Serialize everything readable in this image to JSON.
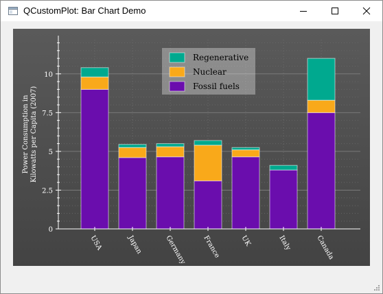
{
  "window": {
    "title": "QCustomPlot: Bar Chart Demo",
    "icons": {
      "app": "app-window-icon",
      "minimize": "minimize-icon",
      "maximize": "maximize-icon",
      "close": "close-icon",
      "grip": "resize-grip-icon"
    }
  },
  "chart_data": {
    "type": "bar",
    "stacked": true,
    "categories": [
      "USA",
      "Japan",
      "Germany",
      "France",
      "UK",
      "Italy",
      "Canada"
    ],
    "series": [
      {
        "name": "Fossil fuels",
        "color": "#6a0dad",
        "values": [
          9.0,
          4.6,
          4.65,
          3.1,
          4.65,
          3.8,
          7.5
        ]
      },
      {
        "name": "Nuclear",
        "color": "#f9a91a",
        "values": [
          0.8,
          0.65,
          0.65,
          2.3,
          0.45,
          0.0,
          0.8
        ]
      },
      {
        "name": "Regenerative",
        "color": "#00a98f",
        "values": [
          0.6,
          0.2,
          0.2,
          0.3,
          0.15,
          0.3,
          2.7
        ]
      }
    ],
    "ylabel": "Power Consumption in\nKilowatts per Capita (2007)",
    "ylim": [
      0,
      12.2
    ],
    "yticks": [
      "0",
      "2.5",
      "5",
      "7.5",
      "10"
    ],
    "ytick_values": [
      0,
      2.5,
      5,
      7.5,
      10
    ],
    "grid": true,
    "legend_placement": "top-center",
    "legend_order": [
      "Regenerative",
      "Nuclear",
      "Fossil fuels"
    ]
  }
}
